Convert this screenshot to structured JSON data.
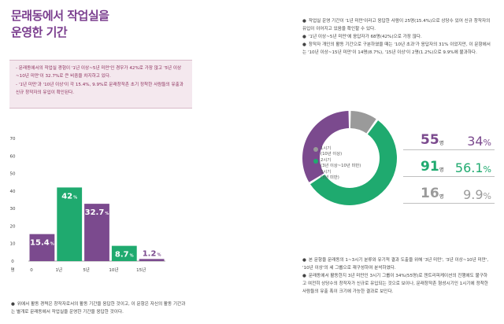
{
  "title_line1": "문래동에서 작업실을",
  "title_line2": "운영한 기간",
  "summary": [
    "- 문래동에서의 작업실 경험이 '1년 이상~5년 미만'인 경우가 42%로 가장 많고 '5년 이상~10년 미만'이 32.7%로 큰 비중을 차지하고 있다.",
    "- '1년 미만'과 '10년 이상'이 각 15.4%, 9.9%로 문래창작촌 초기 정착한 사람들의 유출과 신규 창작자의 유입이 확인된다."
  ],
  "right_top_notes": [
    "작업실 운영 기간이 '1년 미만'이라고 응답한 사람이 25명(15.4%)으로 상당수 있어 신규 창작자의 유입이 이어지고 있음을 확인할 수 있다.",
    "'1년 이상~5년 미만'에 응답자가 68명(42%)으로 가장 많다.",
    "창작자 개인의 활동 기간으로 구분하였을 때는 '10년 초과'가 응답자의 31% 이었지만, 이 문항에서는 '10년 이상~15년 미만'이 14명(8.7%), '15년 이상'이 2명(1.2%)으로 9.9%에 불과하다."
  ],
  "right_bottom_notes": [
    "본 문항을 문래동의 1~3시기 분류와 유기적 결과 도출을 위해 '3년 미만', '3년 이상~10년 미만', '10년 이상'의 세 그룹으로 재구성하여 분석하였다.",
    "문래동에서 활동한지 3년 미만인 3시기 그룹이 34%(55명)로 젠트리피케이션의 진행에도 불구하고 여전히 상당수의 창작자가 신규로 유입되는 것으로 보이나, 문래창작촌 형성시기인 1시기에 정착한 사람들의 유출 폭이 크기에 가능한 결과로 보인다."
  ],
  "left_bottom_note": "위에서 활동 경력은 창작자로서의 활동 기간을 응답한 것이고, 이 문항은 자신의 활동 기간과는 별개로 문래동에서 작업실을 운영한 기간을 응답한 것이다.",
  "bullet_glyph": "●",
  "colors": {
    "purple": "#7b4a8e",
    "green": "#1faa6f",
    "gray": "#9a9a9a",
    "title": "#7b3f8f"
  },
  "chart_data": [
    {
      "type": "bar",
      "categories": [
        "0",
        "1년",
        "5년",
        "10년",
        "15년"
      ],
      "values": [
        15.4,
        42,
        32.7,
        8.7,
        1.2
      ],
      "value_labels": [
        "15.4",
        "42",
        "32.7",
        "8.7",
        "1.2"
      ],
      "value_unit": "%",
      "bar_colors": [
        "#7b4a8e",
        "#1faa6f",
        "#7b4a8e",
        "#1faa6f",
        "#7b4a8e"
      ],
      "yticks": [
        0,
        10,
        20,
        30,
        40,
        50,
        60,
        70
      ],
      "ylabel": "명",
      "ylim": [
        0,
        70
      ]
    },
    {
      "type": "pie",
      "legend": [
        {
          "name": "1시기",
          "sub": "(10년 이상)",
          "color": "#9a9a9a"
        },
        {
          "name": "2시기",
          "sub": "(3년 이상~10년 미만)",
          "color": "#1faa6f"
        },
        {
          "name": "3시기",
          "sub": "(3년 미만)",
          "color": "#7b4a8e"
        }
      ],
      "rows": [
        {
          "count": "55",
          "unit": "명",
          "pct": "34",
          "color": "#7b4a8e"
        },
        {
          "count": "91",
          "unit": "명",
          "pct": "56.1",
          "color": "#1faa6f"
        },
        {
          "count": "16",
          "unit": "명",
          "pct": "9.9",
          "color": "#9a9a9a"
        }
      ],
      "pct_unit": "%",
      "values": [
        16,
        91,
        55
      ]
    }
  ]
}
